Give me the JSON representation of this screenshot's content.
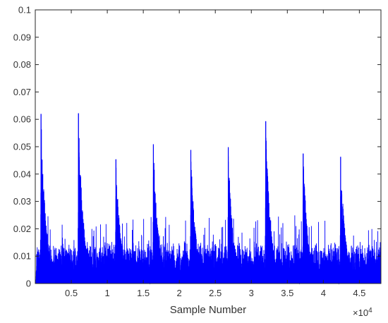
{
  "chart_data": {
    "type": "line",
    "title": "",
    "xlabel": "Sample Number",
    "ylabel": "",
    "x_exponent_label": "×10",
    "x_exponent_power": "4",
    "xlim": [
      0,
      48000
    ],
    "ylim": [
      0,
      0.1
    ],
    "x_ticks": [
      5000,
      10000,
      15000,
      20000,
      25000,
      30000,
      35000,
      40000,
      45000
    ],
    "x_tick_labels": [
      "0.5",
      "1",
      "1.5",
      "2",
      "2.5",
      "3",
      "3.5",
      "4",
      "4.5"
    ],
    "y_ticks": [
      0,
      0.01,
      0.02,
      0.03,
      0.04,
      0.05,
      0.06,
      0.07,
      0.08,
      0.09,
      0.1
    ],
    "y_tick_labels": [
      "0",
      "0.01",
      "0.02",
      "0.03",
      "0.04",
      "0.05",
      "0.06",
      "0.07",
      "0.08",
      "0.09",
      "0.1"
    ],
    "grid": false,
    "line_color": "#0000ff",
    "series": [
      {
        "peaks": [
          {
            "x": 800,
            "y": 0.062
          },
          {
            "x": 6000,
            "y": 0.0622
          },
          {
            "x": 11200,
            "y": 0.0454
          },
          {
            "x": 16400,
            "y": 0.0509
          },
          {
            "x": 21600,
            "y": 0.0488
          },
          {
            "x": 26800,
            "y": 0.0498
          },
          {
            "x": 32000,
            "y": 0.0593
          },
          {
            "x": 37200,
            "y": 0.0475
          },
          {
            "x": 42400,
            "y": 0.0463
          }
        ],
        "noise_floor": 0.011,
        "noise_max": 0.025
      }
    ]
  }
}
